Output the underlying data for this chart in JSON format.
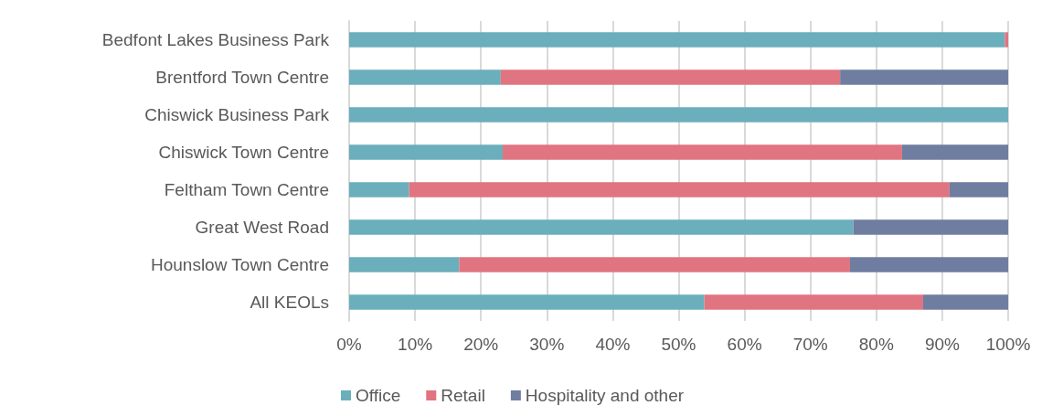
{
  "chart_data": {
    "type": "bar",
    "orientation": "horizontal",
    "stacked": true,
    "categories": [
      "Bedfont Lakes Business Park",
      "Brentford Town Centre",
      "Chiswick Business Park",
      "Chiswick Town Centre",
      "Feltham Town Centre",
      "Great West Road",
      "Hounslow Town Centre",
      "All KEOLs"
    ],
    "series": [
      {
        "name": "Office",
        "color": "#6aafbb",
        "values": [
          99.5,
          23,
          100,
          23.3,
          9.1,
          76.5,
          16.7,
          53.9
        ]
      },
      {
        "name": "Retail",
        "color": "#e07480",
        "values": [
          0.5,
          51.5,
          null,
          60.6,
          82,
          null,
          59.3,
          33.2
        ]
      },
      {
        "name": "Hospitality and other",
        "color": "#6f7da0",
        "values": [
          null,
          25.5,
          null,
          16.1,
          8.9,
          23.5,
          24,
          12.9
        ]
      }
    ],
    "xlim": [
      0,
      100
    ],
    "xticks": [
      {
        "value": 0,
        "label": "0%"
      },
      {
        "value": 10,
        "label": "10%"
      },
      {
        "value": 20,
        "label": "20%"
      },
      {
        "value": 30,
        "label": "30%"
      },
      {
        "value": 40,
        "label": "40%"
      },
      {
        "value": 50,
        "label": "50%"
      },
      {
        "value": 60,
        "label": "60%"
      },
      {
        "value": 70,
        "label": "70%"
      },
      {
        "value": 80,
        "label": "80%"
      },
      {
        "value": 90,
        "label": "90%"
      },
      {
        "value": 100,
        "label": "100%"
      }
    ],
    "grid": "x",
    "legend": "bottom"
  }
}
